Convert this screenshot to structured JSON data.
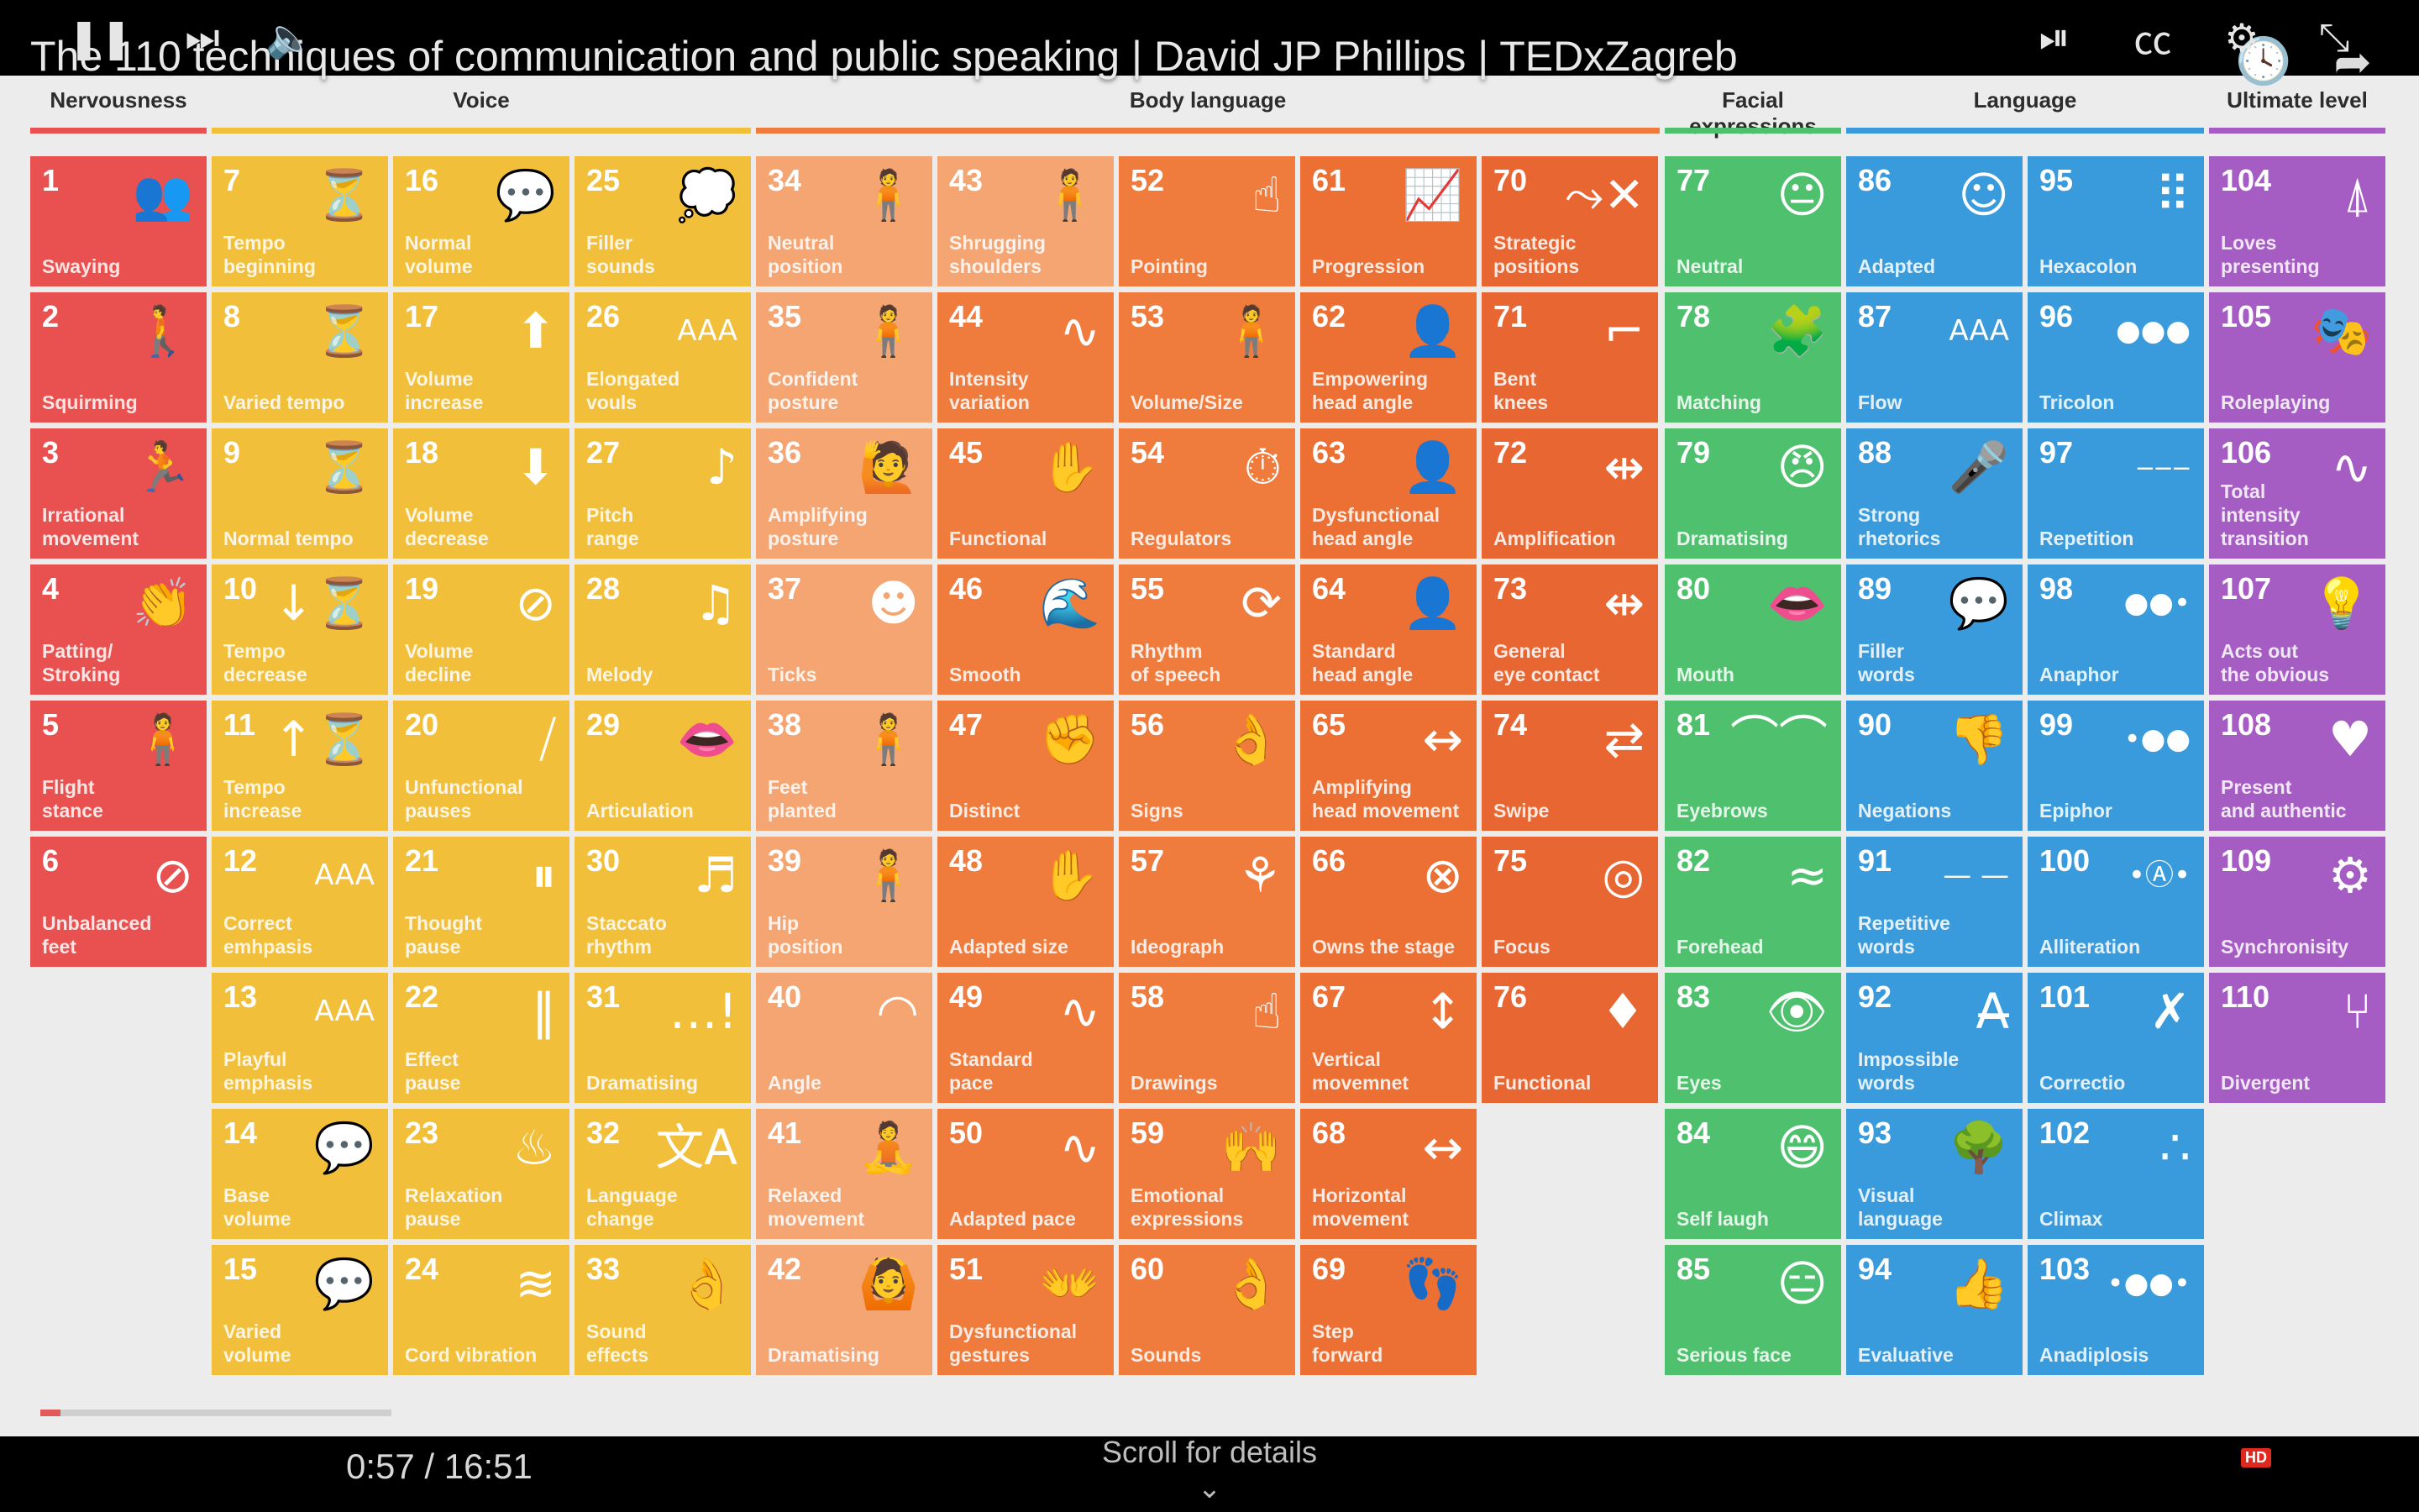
{
  "video": {
    "title": "The 110 techniques of communication and public speaking | David JP Phillips | TEDxZagreb",
    "top_icons": [
      "watch-later-icon",
      "share-icon"
    ],
    "progress_fraction": 0.0564,
    "controls": {
      "time": "0:57 / 16:51",
      "scroll_hint": "Scroll for details",
      "hd_badge": "HD",
      "icons": [
        "pause-icon",
        "next-icon",
        "volume-icon",
        "autoplay-toggle-icon",
        "subtitles-icon",
        "settings-icon",
        "exit-fullscreen-icon"
      ]
    }
  },
  "categories": [
    {
      "label": "Nervousness",
      "color": "#e8514f"
    },
    {
      "label": "Voice",
      "color": "#f2bf3b"
    },
    {
      "label": "Body language",
      "color": "#ef7b3d"
    },
    {
      "label": "Facial expressions",
      "color": "#4fc16e"
    },
    {
      "label": "Language",
      "color": "#3a9bdc"
    },
    {
      "label": "Ultimate level",
      "color": "#a55cc3"
    }
  ],
  "tiles": [
    {
      "n": "1",
      "label": "Swaying",
      "icon": "group-people-icon",
      "glyph": "👥",
      "color": "#e8514f"
    },
    {
      "n": "2",
      "label": "Squirming",
      "icon": "person-icon",
      "glyph": "🚶",
      "color": "#e8514f"
    },
    {
      "n": "3",
      "label": "Irrational\nmovement",
      "icon": "moving-person-icon",
      "glyph": "🏃",
      "color": "#e8514f"
    },
    {
      "n": "4",
      "label": "Patting/\nStroking",
      "icon": "clapping-hands-icon",
      "glyph": "👏",
      "color": "#e8514f"
    },
    {
      "n": "5",
      "label": "Flight\nstance",
      "icon": "standing-person-icon",
      "glyph": "🧍",
      "color": "#e8514f"
    },
    {
      "n": "6",
      "label": "Unbalanced\nfeet",
      "icon": "crossed-foot-icon",
      "glyph": "⊘",
      "color": "#e8514f"
    },
    {
      "n": "7",
      "label": "Tempo\nbeginning",
      "icon": "metronome-icon",
      "glyph": "⏳",
      "color": "#f2bf3b"
    },
    {
      "n": "8",
      "label": "Varied tempo",
      "icon": "metronome-icon",
      "glyph": "⏳",
      "color": "#f2bf3b"
    },
    {
      "n": "9",
      "label": "Normal tempo",
      "icon": "metronome-icon",
      "glyph": "⏳",
      "color": "#f2bf3b"
    },
    {
      "n": "10",
      "label": "Tempo\ndecrease",
      "icon": "metronome-down-icon",
      "glyph": "↓⏳",
      "color": "#f2bf3b"
    },
    {
      "n": "11",
      "label": "Tempo\nincrease",
      "icon": "metronome-up-icon",
      "glyph": "↑⏳",
      "color": "#f2bf3b"
    },
    {
      "n": "12",
      "label": "Correct\nemhpasis",
      "icon": "emphasis-icon",
      "glyph": "AAA",
      "color": "#f2bf3b"
    },
    {
      "n": "13",
      "label": "Playful\nemphasis",
      "icon": "emphasis-icon",
      "glyph": "AAA",
      "color": "#f2bf3b"
    },
    {
      "n": "14",
      "label": "Base\nvolume",
      "icon": "speech-head-icon",
      "glyph": "💬",
      "color": "#f2bf3b"
    },
    {
      "n": "15",
      "label": "Varied\nvolume",
      "icon": "speech-head-icon",
      "glyph": "💬",
      "color": "#f2bf3b"
    },
    {
      "n": "16",
      "label": "Normal\nvolume",
      "icon": "speech-head-icon",
      "glyph": "💬",
      "color": "#f2bf3b"
    },
    {
      "n": "17",
      "label": "Volume\nincrease",
      "icon": "volume-up-head-icon",
      "glyph": "⬆",
      "color": "#f2bf3b"
    },
    {
      "n": "18",
      "label": "Volume\ndecrease",
      "icon": "volume-down-head-icon",
      "glyph": "⬇",
      "color": "#f2bf3b"
    },
    {
      "n": "19",
      "label": "Volume\ndecline",
      "icon": "volume-off-head-icon",
      "glyph": "⊘",
      "color": "#f2bf3b"
    },
    {
      "n": "20",
      "label": "Unfunctional\npauses",
      "icon": "pause-slash-icon",
      "glyph": "⧸",
      "color": "#f2bf3b"
    },
    {
      "n": "21",
      "label": "Thought\npause",
      "icon": "pause-bubble-icon",
      "glyph": "⏸",
      "color": "#f2bf3b"
    },
    {
      "n": "22",
      "label": "Effect\npause",
      "icon": "pause-burst-icon",
      "glyph": "‖",
      "color": "#f2bf3b"
    },
    {
      "n": "23",
      "label": "Relaxation\npause",
      "icon": "relax-person-icon",
      "glyph": "♨",
      "color": "#f2bf3b"
    },
    {
      "n": "24",
      "label": "Cord vibration",
      "icon": "vibration-head-icon",
      "glyph": "≋",
      "color": "#f2bf3b"
    },
    {
      "n": "25",
      "label": "Filler\nsounds",
      "icon": "filler-bubble-icon",
      "glyph": "💭",
      "color": "#f2bf3b"
    },
    {
      "n": "26",
      "label": "Elongated\nvouls",
      "icon": "elongated-letters-icon",
      "glyph": "AAA",
      "color": "#f2bf3b"
    },
    {
      "n": "27",
      "label": "Pitch\nrange",
      "icon": "music-staff-icon",
      "glyph": "♪",
      "color": "#f2bf3b"
    },
    {
      "n": "28",
      "label": "Melody",
      "icon": "music-note-icon",
      "glyph": "♫",
      "color": "#f2bf3b"
    },
    {
      "n": "29",
      "label": "Articulation",
      "icon": "mouth-profile-icon",
      "glyph": "👄",
      "color": "#f2bf3b"
    },
    {
      "n": "30",
      "label": "Staccato\nrhythm",
      "icon": "staccato-staff-icon",
      "glyph": "♬",
      "color": "#f2bf3b"
    },
    {
      "n": "31",
      "label": "Dramatising",
      "icon": "ellipsis-exclaim-icon",
      "glyph": "…!",
      "color": "#f2bf3b"
    },
    {
      "n": "32",
      "label": "Language\nchange",
      "icon": "translate-icon",
      "glyph": "文A",
      "color": "#f2bf3b"
    },
    {
      "n": "33",
      "label": "Sound\neffects",
      "icon": "snap-hand-icon",
      "glyph": "👌",
      "color": "#f2bf3b"
    },
    {
      "n": "34",
      "label": "Neutral\nposition",
      "icon": "standing-person-icon",
      "glyph": "🧍",
      "color": "#f4a572"
    },
    {
      "n": "35",
      "label": "Confident\nposture",
      "icon": "standing-person-icon",
      "glyph": "🧍",
      "color": "#f4a572"
    },
    {
      "n": "36",
      "label": "Amplifying\nposture",
      "icon": "arm-raised-person-icon",
      "glyph": "🙋",
      "color": "#f4a572"
    },
    {
      "n": "37",
      "label": "Ticks",
      "icon": "face-tick-icon",
      "glyph": "☻",
      "color": "#f4a572"
    },
    {
      "n": "38",
      "label": "Feet\nplanted",
      "icon": "standing-person-icon",
      "glyph": "🧍",
      "color": "#f4a572"
    },
    {
      "n": "39",
      "label": "Hip\nposition",
      "icon": "standing-person-icon",
      "glyph": "🧍",
      "color": "#f4a572"
    },
    {
      "n": "40",
      "label": "Angle",
      "icon": "wifi-angle-icon",
      "glyph": "◠",
      "color": "#f4a572"
    },
    {
      "n": "41",
      "label": "Relaxed\nmovement",
      "icon": "meditation-icon",
      "glyph": "🧘",
      "color": "#f4a572"
    },
    {
      "n": "42",
      "label": "Dramatising",
      "icon": "open-arms-icon",
      "glyph": "🙆",
      "color": "#f4a572"
    },
    {
      "n": "43",
      "label": "Shrugging\nshoulders",
      "icon": "standing-person-icon",
      "glyph": "🧍",
      "color": "#f4a572"
    },
    {
      "n": "44",
      "label": "Intensity\nvariation",
      "icon": "waveform-icon",
      "glyph": "∿",
      "color": "#ef7b3d"
    },
    {
      "n": "45",
      "label": "Functional",
      "icon": "three-fingers-icon",
      "glyph": "✋",
      "color": "#ef7b3d"
    },
    {
      "n": "46",
      "label": "Smooth",
      "icon": "wave-icon",
      "glyph": "🌊",
      "color": "#ef7b3d"
    },
    {
      "n": "47",
      "label": "Distinct",
      "icon": "fist-icon",
      "glyph": "✊",
      "color": "#ef7b3d"
    },
    {
      "n": "48",
      "label": "Adapted size",
      "icon": "two-hands-icon",
      "glyph": "✋",
      "color": "#ef7b3d"
    },
    {
      "n": "49",
      "label": "Standard\npace",
      "icon": "waveform-icon",
      "glyph": "∿",
      "color": "#ef7b3d"
    },
    {
      "n": "50",
      "label": "Adapted pace",
      "icon": "waveform-gear-icon",
      "glyph": "∿",
      "color": "#ef7b3d"
    },
    {
      "n": "51",
      "label": "Dysfunctional\ngestures",
      "icon": "many-hands-icon",
      "glyph": "👐",
      "color": "#ef7b3d"
    },
    {
      "n": "52",
      "label": "Pointing",
      "icon": "pointing-hand-icon",
      "glyph": "☝",
      "color": "#ef7b3d"
    },
    {
      "n": "53",
      "label": "Volume/Size",
      "icon": "person-box-icon",
      "glyph": "🧍",
      "color": "#ef7b3d"
    },
    {
      "n": "54",
      "label": "Regulators",
      "icon": "stopwatch-icon",
      "glyph": "⏱",
      "color": "#ef7b3d"
    },
    {
      "n": "55",
      "label": "Rhythm\nof speech",
      "icon": "rhythm-hand-icon",
      "glyph": "⟳",
      "color": "#ef7b3d"
    },
    {
      "n": "56",
      "label": "Signs",
      "icon": "ok-hand-icon",
      "glyph": "👌",
      "color": "#ef7b3d"
    },
    {
      "n": "57",
      "label": "Ideograph",
      "icon": "wheat-icon",
      "glyph": "⚘",
      "color": "#ef7b3d"
    },
    {
      "n": "58",
      "label": "Drawings",
      "icon": "drawing-hand-icon",
      "glyph": "☝",
      "color": "#ef7b3d"
    },
    {
      "n": "59",
      "label": "Emotional\nexpressions",
      "icon": "cheering-person-icon",
      "glyph": "🙌",
      "color": "#ef7b3d"
    },
    {
      "n": "60",
      "label": "Sounds",
      "icon": "snap-hand-icon",
      "glyph": "👌",
      "color": "#ef7b3d"
    },
    {
      "n": "61",
      "label": "Progression",
      "icon": "trend-up-icon",
      "glyph": "📈",
      "color": "#ec6f33"
    },
    {
      "n": "62",
      "label": "Empowering\nhead angle",
      "icon": "head-profile-icon",
      "glyph": "👤",
      "color": "#ec6f33"
    },
    {
      "n": "63",
      "label": "Dysfunctional\nhead angle",
      "icon": "head-profile-icon",
      "glyph": "👤",
      "color": "#ec6f33"
    },
    {
      "n": "64",
      "label": "Standard\nhead angle",
      "icon": "head-profile-icon",
      "glyph": "👤",
      "color": "#ec6f33"
    },
    {
      "n": "65",
      "label": "Amplifying\nhead movement",
      "icon": "head-arrows-icon",
      "glyph": "↔",
      "color": "#ec6f33"
    },
    {
      "n": "66",
      "label": "Owns the stage",
      "icon": "x-circle-icon",
      "glyph": "⊗",
      "color": "#ec6f33"
    },
    {
      "n": "67",
      "label": "Vertical\nmovemnet",
      "icon": "vertical-arrow-icon",
      "glyph": "↕",
      "color": "#ec6f33"
    },
    {
      "n": "68",
      "label": "Horizontal\nmovement",
      "icon": "horizontal-arrow-icon",
      "glyph": "↔",
      "color": "#ec6f33"
    },
    {
      "n": "69",
      "label": "Step\nforward",
      "icon": "footprints-icon",
      "glyph": "👣",
      "color": "#ec6f33"
    },
    {
      "n": "70",
      "label": "Strategic\npositions",
      "icon": "path-x-icon",
      "glyph": "⤳✕",
      "color": "#e86631"
    },
    {
      "n": "71",
      "label": "Bent\nknees",
      "icon": "knee-icon",
      "glyph": "⌐",
      "color": "#e86631"
    },
    {
      "n": "72",
      "label": "Amplification",
      "icon": "two-heads-icon",
      "glyph": "⇹",
      "color": "#e86631"
    },
    {
      "n": "73",
      "label": "General\neye contact",
      "icon": "two-heads-icon",
      "glyph": "⇹",
      "color": "#e86631"
    },
    {
      "n": "74",
      "label": "Swipe",
      "icon": "eye-swipe-icon",
      "glyph": "⇄",
      "color": "#e86631"
    },
    {
      "n": "75",
      "label": "Focus",
      "icon": "target-icon",
      "glyph": "◎",
      "color": "#e86631"
    },
    {
      "n": "76",
      "label": "Functional",
      "icon": "tie-icon",
      "glyph": "♦",
      "color": "#e86631"
    },
    {
      "n": "77",
      "label": "Neutral",
      "icon": "neutral-face-icon",
      "glyph": "😐",
      "color": "#4fc16e"
    },
    {
      "n": "78",
      "label": "Matching",
      "icon": "puzzle-icon",
      "glyph": "🧩",
      "color": "#4fc16e"
    },
    {
      "n": "79",
      "label": "Dramatising",
      "icon": "angry-face-icon",
      "glyph": "😠",
      "color": "#4fc16e"
    },
    {
      "n": "80",
      "label": "Mouth",
      "icon": "lips-icon",
      "glyph": "👄",
      "color": "#4fc16e"
    },
    {
      "n": "81",
      "label": "Eyebrows",
      "icon": "eyebrows-icon",
      "glyph": "⌒⌒",
      "color": "#4fc16e"
    },
    {
      "n": "82",
      "label": "Forehead",
      "icon": "forehead-lines-icon",
      "glyph": "≈",
      "color": "#4fc16e"
    },
    {
      "n": "83",
      "label": "Eyes",
      "icon": "eye-icon",
      "glyph": "👁",
      "color": "#4fc16e"
    },
    {
      "n": "84",
      "label": "Self laugh",
      "icon": "laughing-face-icon",
      "glyph": "😄",
      "color": "#4fc16e"
    },
    {
      "n": "85",
      "label": "Serious face",
      "icon": "serious-face-icon",
      "glyph": "😑",
      "color": "#4fc16e"
    },
    {
      "n": "86",
      "label": "Adapted",
      "icon": "audience-icon",
      "glyph": "☺",
      "color": "#3a9bdc"
    },
    {
      "n": "87",
      "label": "Flow",
      "icon": "text-flow-icon",
      "glyph": "AAA",
      "color": "#3a9bdc"
    },
    {
      "n": "88",
      "label": "Strong\nrhetorics",
      "icon": "podium-icon",
      "glyph": "🎤",
      "color": "#3a9bdc"
    },
    {
      "n": "89",
      "label": "Filler\nwords",
      "icon": "speech-bubble-icon",
      "glyph": "💬",
      "color": "#3a9bdc"
    },
    {
      "n": "90",
      "label": "Negations",
      "icon": "thumbs-down-icon",
      "glyph": "👎",
      "color": "#3a9bdc"
    },
    {
      "n": "91",
      "label": "Repetitive\nwords",
      "icon": "dashes-icon",
      "glyph": "— —",
      "color": "#3a9bdc"
    },
    {
      "n": "92",
      "label": "Impossible\nwords",
      "icon": "strikethrough-text-icon",
      "glyph": "A̶",
      "color": "#3a9bdc"
    },
    {
      "n": "93",
      "label": "Visual\nlanguage",
      "icon": "tree-icon",
      "glyph": "🌳",
      "color": "#3a9bdc"
    },
    {
      "n": "94",
      "label": "Evaluative",
      "icon": "thumbs-up-icon",
      "glyph": "👍",
      "color": "#3a9bdc"
    },
    {
      "n": "95",
      "label": "Hexacolon",
      "icon": "six-dots-icon",
      "glyph": "⠿",
      "color": "#3a9bdc"
    },
    {
      "n": "96",
      "label": "Tricolon",
      "icon": "three-dots-icon",
      "glyph": "●●●",
      "color": "#3a9bdc"
    },
    {
      "n": "97",
      "label": "Repetition",
      "icon": "three-dashes-icon",
      "glyph": "‒‒‒",
      "color": "#3a9bdc"
    },
    {
      "n": "98",
      "label": "Anaphor",
      "icon": "dots-descending-icon",
      "glyph": "●●•",
      "color": "#3a9bdc"
    },
    {
      "n": "99",
      "label": "Epiphor",
      "icon": "dots-ascending-icon",
      "glyph": "•●●",
      "color": "#3a9bdc"
    },
    {
      "n": "100",
      "label": "Alliteration",
      "icon": "dots-a-icon",
      "glyph": "•Ⓐ•",
      "color": "#3a9bdc"
    },
    {
      "n": "101",
      "label": "Correctio",
      "icon": "no-yes-icon",
      "glyph": "✗",
      "color": "#3a9bdc"
    },
    {
      "n": "102",
      "label": "Climax",
      "icon": "dots-rising-icon",
      "glyph": "∴",
      "color": "#3a9bdc"
    },
    {
      "n": "103",
      "label": "Anadiplosis",
      "icon": "dots-chain-icon",
      "glyph": "•●●•",
      "color": "#3a9bdc"
    },
    {
      "n": "104",
      "label": "Loves\npresenting",
      "icon": "spotlight-person-icon",
      "glyph": "⍋",
      "color": "#a55cc3"
    },
    {
      "n": "105",
      "label": "Roleplaying",
      "icon": "mask-icon",
      "glyph": "🎭",
      "color": "#a55cc3"
    },
    {
      "n": "106",
      "label": "Total\nintensity\ntransition",
      "icon": "waveform-icon",
      "glyph": "∿",
      "color": "#a55cc3"
    },
    {
      "n": "107",
      "label": "Acts out\nthe obvious",
      "icon": "lightbulb-head-icon",
      "glyph": "💡",
      "color": "#a55cc3"
    },
    {
      "n": "108",
      "label": "Present\nand authentic",
      "icon": "heart-icon",
      "glyph": "♥",
      "color": "#a55cc3"
    },
    {
      "n": "109",
      "label": "Synchronisity",
      "icon": "gears-icon",
      "glyph": "⚙",
      "color": "#a55cc3"
    },
    {
      "n": "110",
      "label": "Divergent",
      "icon": "diverge-arrow-icon",
      "glyph": "⑂",
      "color": "#a55cc3"
    }
  ]
}
